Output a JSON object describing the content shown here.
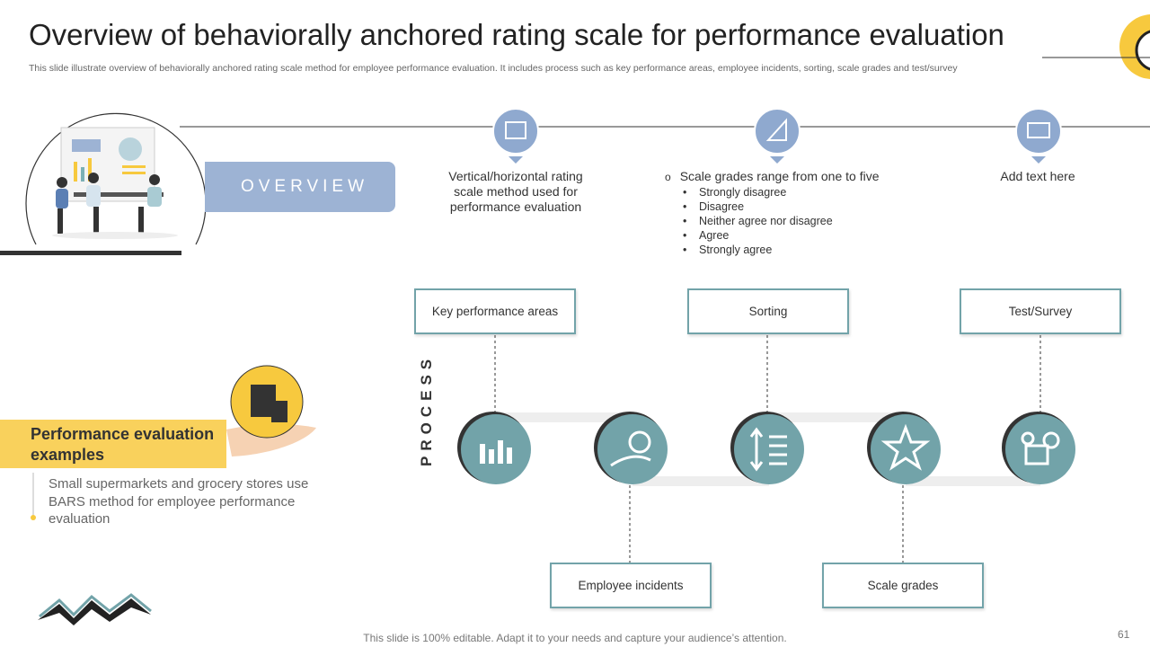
{
  "header": {
    "title": "Overview of behaviorally anchored rating scale for performance evaluation",
    "subtitle": "This slide illustrate overview of behaviorally anchored rating scale method for employee performance evaluation. It includes process such as key performance areas, employee incidents, sorting, scale grades and test/survey"
  },
  "overview": {
    "label": "OVERVIEW",
    "items": [
      "Vertical/horizontal rating scale method used for performance evaluation",
      "Add text here"
    ],
    "scale": {
      "intro": "Scale grades range from one to five",
      "marker": "o",
      "grades": [
        "Strongly disagree",
        "Disagree",
        "Neither agree nor disagree",
        "Agree",
        "Strongly agree"
      ]
    }
  },
  "process": {
    "label": "PROCESS",
    "top": [
      "Key performance  areas",
      "Sorting",
      "Test/Survey"
    ],
    "bottom": [
      "Employee incidents",
      "Scale grades"
    ]
  },
  "examples": {
    "title": "Performance evaluation examples",
    "text": "Small supermarkets and grocery stores use BARS method for employee performance evaluation"
  },
  "footer": {
    "note": "This slide is 100% editable. Adapt it to your needs and capture your audience’s attention.",
    "page": "61"
  }
}
